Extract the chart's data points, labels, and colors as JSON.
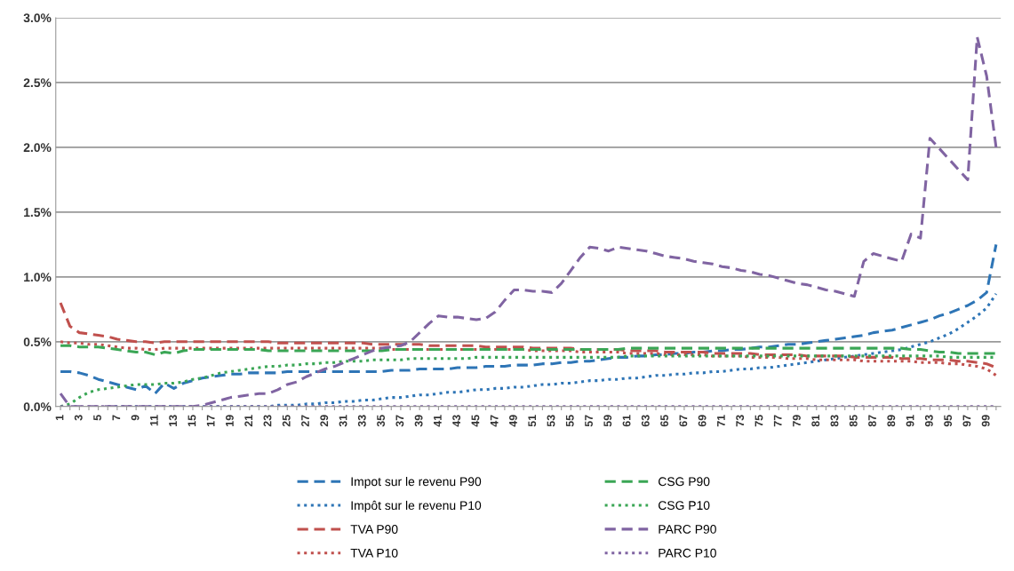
{
  "chart_data": {
    "type": "line",
    "categories": [
      "1",
      null,
      "3",
      null,
      "5",
      null,
      "7",
      null,
      "9",
      null,
      "11",
      null,
      "13",
      null,
      "15",
      null,
      "17",
      null,
      "19",
      null,
      "21",
      null,
      "23",
      null,
      "25",
      null,
      "27",
      null,
      "29",
      null,
      "31",
      null,
      "33",
      null,
      "35",
      null,
      "37",
      null,
      "39",
      null,
      "41",
      null,
      "43",
      null,
      "45",
      null,
      "47",
      null,
      "49",
      null,
      "51",
      null,
      "53",
      null,
      "55",
      null,
      "57",
      null,
      "59",
      null,
      "61",
      null,
      "63",
      null,
      "65",
      null,
      "67",
      null,
      "69",
      null,
      "71",
      null,
      "73",
      null,
      "75",
      null,
      "77",
      null,
      "79",
      null,
      "81",
      null,
      "83",
      null,
      "85",
      null,
      "87",
      null,
      "89",
      null,
      "91",
      null,
      "93",
      null,
      "95",
      null,
      "97",
      null,
      "99",
      null
    ],
    "series": [
      {
        "name": "Impot sur le revenu P90",
        "color": "#2e75b6",
        "line_style": "dashed",
        "values": [
          0.27,
          0.27,
          0.26,
          0.24,
          0.21,
          0.19,
          0.17,
          0.15,
          0.13,
          0.16,
          0.1,
          0.18,
          0.14,
          0.18,
          0.2,
          0.22,
          0.23,
          0.24,
          0.25,
          0.25,
          0.26,
          0.26,
          0.26,
          0.26,
          0.27,
          0.27,
          0.27,
          0.27,
          0.27,
          0.27,
          0.27,
          0.27,
          0.27,
          0.27,
          0.27,
          0.28,
          0.28,
          0.28,
          0.29,
          0.29,
          0.29,
          0.29,
          0.3,
          0.3,
          0.3,
          0.31,
          0.31,
          0.31,
          0.32,
          0.32,
          0.32,
          0.33,
          0.33,
          0.34,
          0.34,
          0.35,
          0.35,
          0.36,
          0.37,
          0.38,
          0.38,
          0.39,
          0.39,
          0.4,
          0.4,
          0.41,
          0.41,
          0.42,
          0.42,
          0.43,
          0.43,
          0.44,
          0.44,
          0.45,
          0.46,
          0.46,
          0.47,
          0.48,
          0.48,
          0.49,
          0.5,
          0.51,
          0.52,
          0.53,
          0.54,
          0.55,
          0.57,
          0.58,
          0.59,
          0.61,
          0.63,
          0.65,
          0.67,
          0.7,
          0.72,
          0.75,
          0.78,
          0.82,
          0.88,
          1.25
        ]
      },
      {
        "name": "Impôt sur le revenu P10",
        "color": "#2e75b6",
        "line_style": "dotted",
        "values": [
          null,
          null,
          null,
          null,
          null,
          0,
          0,
          0,
          0,
          0,
          0,
          0,
          0,
          0,
          0,
          0,
          0,
          0,
          0,
          0,
          0,
          0,
          0,
          0.01,
          0.01,
          0.01,
          0.02,
          0.02,
          0.03,
          0.03,
          0.04,
          0.04,
          0.05,
          0.05,
          0.06,
          0.07,
          0.07,
          0.08,
          0.09,
          0.09,
          0.1,
          0.11,
          0.11,
          0.12,
          0.13,
          0.13,
          0.14,
          0.14,
          0.15,
          0.15,
          0.16,
          0.17,
          0.17,
          0.18,
          0.18,
          0.19,
          0.2,
          0.2,
          0.21,
          0.21,
          0.22,
          0.22,
          0.23,
          0.24,
          0.24,
          0.25,
          0.25,
          0.26,
          0.26,
          0.27,
          0.27,
          0.28,
          0.29,
          0.29,
          0.3,
          0.3,
          0.31,
          0.32,
          0.33,
          0.34,
          0.35,
          0.36,
          0.37,
          0.38,
          0.39,
          0.4,
          0.41,
          0.42,
          0.43,
          0.44,
          0.46,
          0.48,
          0.5,
          0.53,
          0.56,
          0.6,
          0.65,
          0.7,
          0.76,
          0.87
        ]
      },
      {
        "name": "TVA P90",
        "color": "#c0504d",
        "line_style": "dashed",
        "values": [
          0.8,
          0.62,
          0.57,
          0.56,
          0.55,
          0.54,
          0.52,
          0.51,
          0.5,
          0.5,
          0.49,
          0.5,
          0.5,
          0.5,
          0.5,
          0.5,
          0.5,
          0.5,
          0.5,
          0.5,
          0.5,
          0.5,
          0.5,
          0.49,
          0.49,
          0.49,
          0.49,
          0.49,
          0.49,
          0.49,
          0.49,
          0.49,
          0.49,
          0.48,
          0.48,
          0.48,
          0.48,
          0.48,
          0.48,
          0.47,
          0.47,
          0.47,
          0.47,
          0.47,
          0.47,
          0.46,
          0.46,
          0.46,
          0.46,
          0.46,
          0.45,
          0.45,
          0.45,
          0.45,
          0.45,
          0.44,
          0.44,
          0.44,
          0.44,
          0.44,
          0.43,
          0.43,
          0.43,
          0.43,
          0.42,
          0.42,
          0.42,
          0.42,
          0.42,
          0.41,
          0.41,
          0.41,
          0.41,
          0.41,
          0.4,
          0.4,
          0.4,
          0.4,
          0.4,
          0.39,
          0.39,
          0.39,
          0.39,
          0.39,
          0.38,
          0.38,
          0.38,
          0.38,
          0.38,
          0.37,
          0.37,
          0.37,
          0.36,
          0.36,
          0.36,
          0.35,
          0.35,
          0.34,
          0.33,
          0.3
        ]
      },
      {
        "name": "TVA P10",
        "color": "#c0504d",
        "line_style": "dotted",
        "values": [
          0.5,
          0.49,
          0.49,
          0.48,
          0.48,
          0.47,
          0.46,
          0.45,
          0.45,
          0.44,
          0.44,
          0.45,
          0.45,
          0.45,
          0.45,
          0.45,
          0.45,
          0.45,
          0.45,
          0.45,
          0.45,
          0.45,
          0.45,
          0.45,
          0.45,
          0.45,
          0.45,
          0.45,
          0.45,
          0.45,
          0.45,
          0.45,
          0.45,
          0.45,
          0.45,
          0.44,
          0.44,
          0.44,
          0.44,
          0.44,
          0.44,
          0.44,
          0.44,
          0.44,
          0.44,
          0.44,
          0.44,
          0.44,
          0.44,
          0.44,
          0.43,
          0.43,
          0.43,
          0.43,
          0.43,
          0.42,
          0.42,
          0.42,
          0.42,
          0.42,
          0.41,
          0.41,
          0.41,
          0.41,
          0.4,
          0.4,
          0.4,
          0.4,
          0.4,
          0.39,
          0.39,
          0.39,
          0.39,
          0.38,
          0.38,
          0.38,
          0.38,
          0.37,
          0.37,
          0.37,
          0.36,
          0.36,
          0.36,
          0.36,
          0.36,
          0.35,
          0.35,
          0.35,
          0.35,
          0.35,
          0.35,
          0.34,
          0.34,
          0.34,
          0.33,
          0.33,
          0.32,
          0.31,
          0.29,
          0.24
        ]
      },
      {
        "name": "CSG P90",
        "color": "#3aa655",
        "line_style": "dashed",
        "values": [
          0.47,
          0.47,
          0.46,
          0.46,
          0.46,
          0.45,
          0.44,
          0.43,
          0.42,
          0.42,
          0.4,
          0.42,
          0.41,
          0.43,
          0.44,
          0.44,
          0.44,
          0.44,
          0.44,
          0.44,
          0.44,
          0.44,
          0.43,
          0.43,
          0.43,
          0.43,
          0.43,
          0.43,
          0.43,
          0.43,
          0.43,
          0.43,
          0.43,
          0.43,
          0.43,
          0.44,
          0.44,
          0.44,
          0.44,
          0.44,
          0.44,
          0.44,
          0.44,
          0.44,
          0.44,
          0.44,
          0.44,
          0.44,
          0.44,
          0.44,
          0.44,
          0.44,
          0.44,
          0.44,
          0.44,
          0.44,
          0.44,
          0.44,
          0.44,
          0.44,
          0.45,
          0.45,
          0.45,
          0.45,
          0.45,
          0.45,
          0.45,
          0.45,
          0.45,
          0.45,
          0.45,
          0.45,
          0.45,
          0.45,
          0.45,
          0.45,
          0.45,
          0.45,
          0.45,
          0.45,
          0.45,
          0.45,
          0.45,
          0.45,
          0.45,
          0.45,
          0.45,
          0.45,
          0.45,
          0.45,
          0.44,
          0.44,
          0.43,
          0.42,
          0.42,
          0.41,
          0.41,
          0.41,
          0.41,
          0.41
        ]
      },
      {
        "name": "CSG P10",
        "color": "#3aa655",
        "line_style": "dotted",
        "values": [
          0.0,
          0.02,
          0.07,
          0.11,
          0.13,
          0.14,
          0.15,
          0.16,
          0.17,
          0.17,
          0.17,
          0.18,
          0.18,
          0.19,
          0.21,
          0.22,
          0.24,
          0.26,
          0.27,
          0.28,
          0.29,
          0.3,
          0.31,
          0.31,
          0.32,
          0.32,
          0.33,
          0.33,
          0.34,
          0.34,
          0.35,
          0.35,
          0.35,
          0.36,
          0.36,
          0.36,
          0.36,
          0.37,
          0.37,
          0.37,
          0.37,
          0.37,
          0.37,
          0.37,
          0.38,
          0.38,
          0.38,
          0.38,
          0.38,
          0.38,
          0.38,
          0.38,
          0.38,
          0.38,
          0.38,
          0.38,
          0.38,
          0.38,
          0.38,
          0.38,
          0.39,
          0.39,
          0.39,
          0.39,
          0.39,
          0.39,
          0.39,
          0.39,
          0.39,
          0.39,
          0.39,
          0.39,
          0.39,
          0.39,
          0.39,
          0.39,
          0.39,
          0.39,
          0.39,
          0.39,
          0.39,
          0.39,
          0.39,
          0.39,
          0.39,
          0.39,
          0.39,
          0.39,
          0.39,
          0.39,
          0.39,
          0.39,
          0.39,
          0.39,
          0.38,
          0.38,
          0.38,
          0.38,
          0.38,
          0.38
        ]
      },
      {
        "name": "PARC P90",
        "color": "#8064a2",
        "line_style": "dashed",
        "values": [
          0.1,
          0,
          0,
          0,
          0,
          0,
          0,
          0,
          0,
          0,
          0,
          0,
          0,
          0,
          0,
          0.01,
          0.03,
          0.05,
          0.07,
          0.08,
          0.09,
          0.1,
          0.1,
          0.13,
          0.17,
          0.19,
          0.23,
          0.26,
          0.29,
          0.31,
          0.34,
          0.37,
          0.4,
          0.43,
          0.45,
          0.46,
          0.47,
          0.5,
          0.57,
          0.64,
          0.7,
          0.69,
          0.69,
          0.68,
          0.67,
          0.68,
          0.73,
          0.82,
          0.9,
          0.9,
          0.89,
          0.89,
          0.88,
          0.95,
          1.05,
          1.15,
          1.23,
          1.22,
          1.2,
          1.23,
          1.22,
          1.21,
          1.2,
          1.18,
          1.16,
          1.15,
          1.14,
          1.12,
          1.11,
          1.1,
          1.08,
          1.07,
          1.05,
          1.04,
          1.02,
          1.01,
          0.99,
          0.97,
          0.95,
          0.94,
          0.92,
          0.9,
          0.89,
          0.87,
          0.85,
          1.12,
          1.18,
          1.16,
          1.14,
          1.12,
          1.33,
          1.3,
          2.07,
          1.99,
          1.91,
          1.83,
          1.75,
          2.85,
          2.55,
          2.0
        ]
      },
      {
        "name": "PARC P10",
        "color": "#8064a2",
        "line_style": "dotted",
        "values": [
          0,
          0,
          0,
          0,
          0,
          0,
          0,
          0,
          0,
          0,
          0,
          0,
          0,
          0,
          0,
          0,
          0,
          0,
          0,
          0,
          0,
          0,
          0,
          0,
          0,
          0,
          0,
          0,
          0,
          0,
          0,
          0,
          0,
          0,
          0,
          0,
          0,
          0,
          0,
          0,
          0,
          0,
          0,
          0,
          0,
          0,
          0,
          0,
          0,
          0,
          0,
          0,
          0,
          0,
          0,
          0,
          0,
          0,
          0,
          0,
          0,
          0,
          0,
          0,
          0,
          0,
          0,
          0,
          0,
          0,
          0,
          0,
          0,
          0,
          0,
          0,
          0,
          0,
          0,
          0,
          0,
          0,
          0,
          0,
          0,
          0,
          0,
          0,
          0,
          0,
          0,
          0,
          0,
          0,
          0,
          0,
          0,
          0,
          0,
          0
        ]
      }
    ],
    "ylim": [
      0,
      3.0
    ],
    "yticks": [
      {
        "value": 0,
        "label": "0.0%"
      },
      {
        "value": 0.5,
        "label": "0.5%"
      },
      {
        "value": 1.0,
        "label": "1.0%"
      },
      {
        "value": 1.5,
        "label": "1.5%"
      },
      {
        "value": 2.0,
        "label": "2.0%"
      },
      {
        "value": 2.5,
        "label": "2.5%"
      },
      {
        "value": 3.0,
        "label": "3.0%"
      }
    ],
    "grid": "y",
    "legend": "bottom"
  }
}
